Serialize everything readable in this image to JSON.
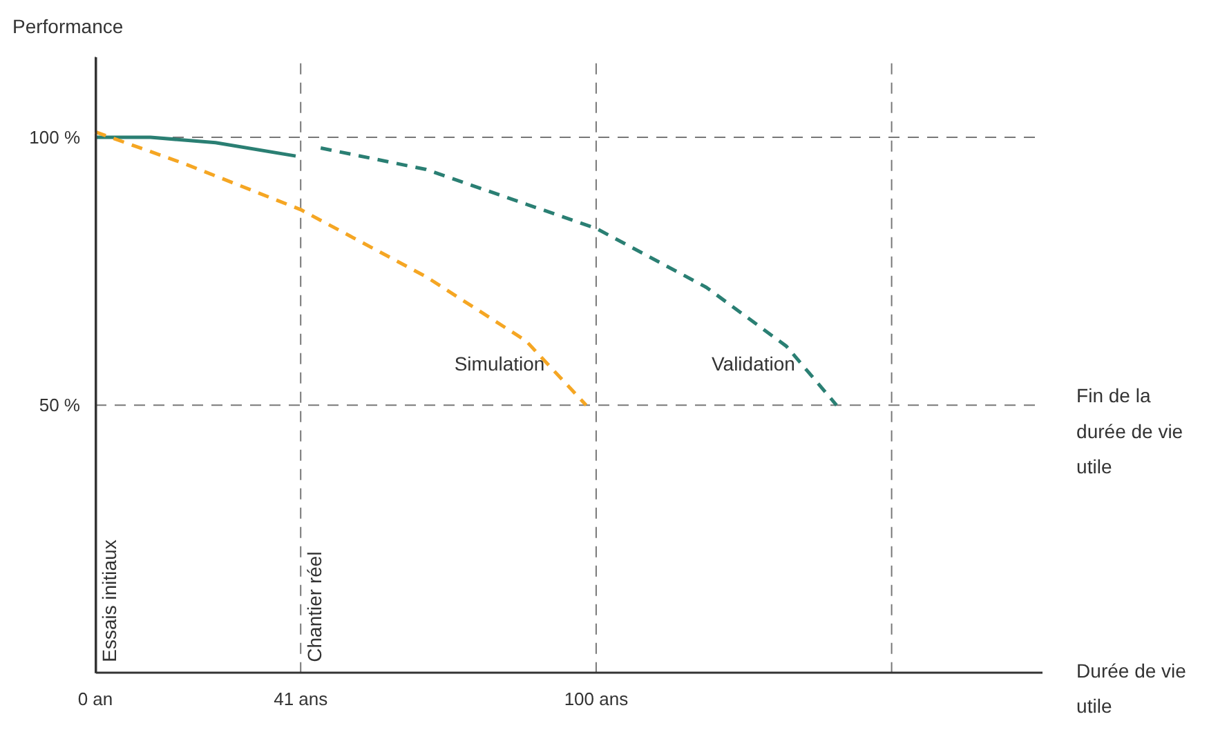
{
  "chart_data": {
    "type": "line",
    "ylabel": "Performance",
    "xlabel": "Durée de vie utile",
    "xlim": [
      0,
      189
    ],
    "ylim": [
      0,
      115
    ],
    "xticks": [
      {
        "value": 0,
        "label": "0 an"
      },
      {
        "value": 41,
        "label": "41 ans"
      },
      {
        "value": 100,
        "label": "100 ans"
      }
    ],
    "yticks": [
      {
        "value": 50,
        "label": "50 %"
      },
      {
        "value": 100,
        "label": "100 %"
      }
    ],
    "series": [
      {
        "color": "#2a7f73",
        "line_style": "solid",
        "x": [
          0,
          11,
          24,
          40
        ],
        "values": [
          100,
          100,
          99,
          96.5
        ]
      },
      {
        "name": "Validation",
        "color": "#2a7f73",
        "line_style": "dashed",
        "x": [
          45,
          66,
          100,
          122,
          138,
          148
        ],
        "values": [
          98,
          94,
          83,
          72,
          61,
          50
        ]
      },
      {
        "name": "Simulation",
        "color": "#f5a623",
        "line_style": "dashed",
        "x": [
          0,
          18,
          41,
          66,
          86,
          98
        ],
        "values": [
          101,
          95,
          86.5,
          74,
          62,
          50
        ]
      }
    ],
    "ref_lines": [
      {
        "axis": "y",
        "value": 100,
        "label": null,
        "color": "#777777",
        "line_style": "dashed"
      },
      {
        "axis": "y",
        "value": 50,
        "label": "Fin de la durée de vie utile",
        "color": "#777777",
        "line_style": "dashed"
      },
      {
        "axis": "x",
        "value": 0,
        "label": "Essais initiaux",
        "color": "#333333",
        "line_style": "solid"
      },
      {
        "axis": "x",
        "value": 41,
        "label": "Chantier réel",
        "color": "#777777",
        "line_style": "dashed"
      },
      {
        "axis": "x",
        "value": 100,
        "label": null,
        "color": "#777777",
        "line_style": "dashed"
      },
      {
        "axis": "x",
        "value": 159,
        "label": null,
        "color": "#777777",
        "line_style": "dashed"
      }
    ],
    "grid": false
  }
}
